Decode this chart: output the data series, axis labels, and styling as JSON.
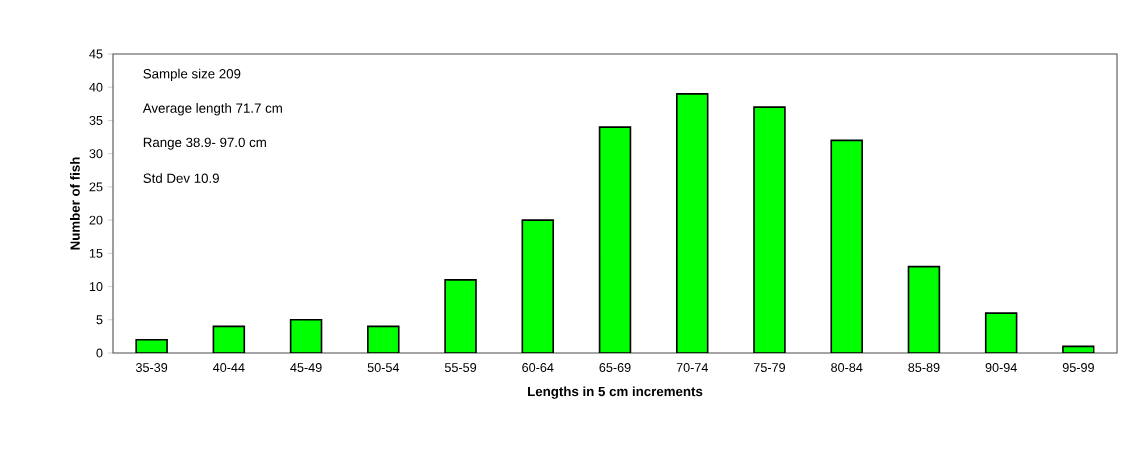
{
  "chart_data": {
    "type": "bar",
    "xlabel": "Lengths in 5 cm increments",
    "ylabel": "Number of fish",
    "categories": [
      "35-39",
      "40-44",
      "45-49",
      "50-54",
      "55-59",
      "60-64",
      "65-69",
      "70-74",
      "75-79",
      "80-84",
      "85-89",
      "90-94",
      "95-99"
    ],
    "values": [
      2,
      4,
      5,
      4,
      11,
      20,
      34,
      39,
      37,
      32,
      13,
      6,
      1
    ],
    "color": "#00ff00",
    "ylim": [
      0,
      45
    ],
    "yticks": [
      0,
      5,
      10,
      15,
      20,
      25,
      30,
      35,
      40,
      45
    ],
    "annotations": [
      "Sample size 209",
      "Average length 71.7 cm",
      "Range 38.9- 97.0 cm",
      "Std Dev 10.9"
    ]
  }
}
